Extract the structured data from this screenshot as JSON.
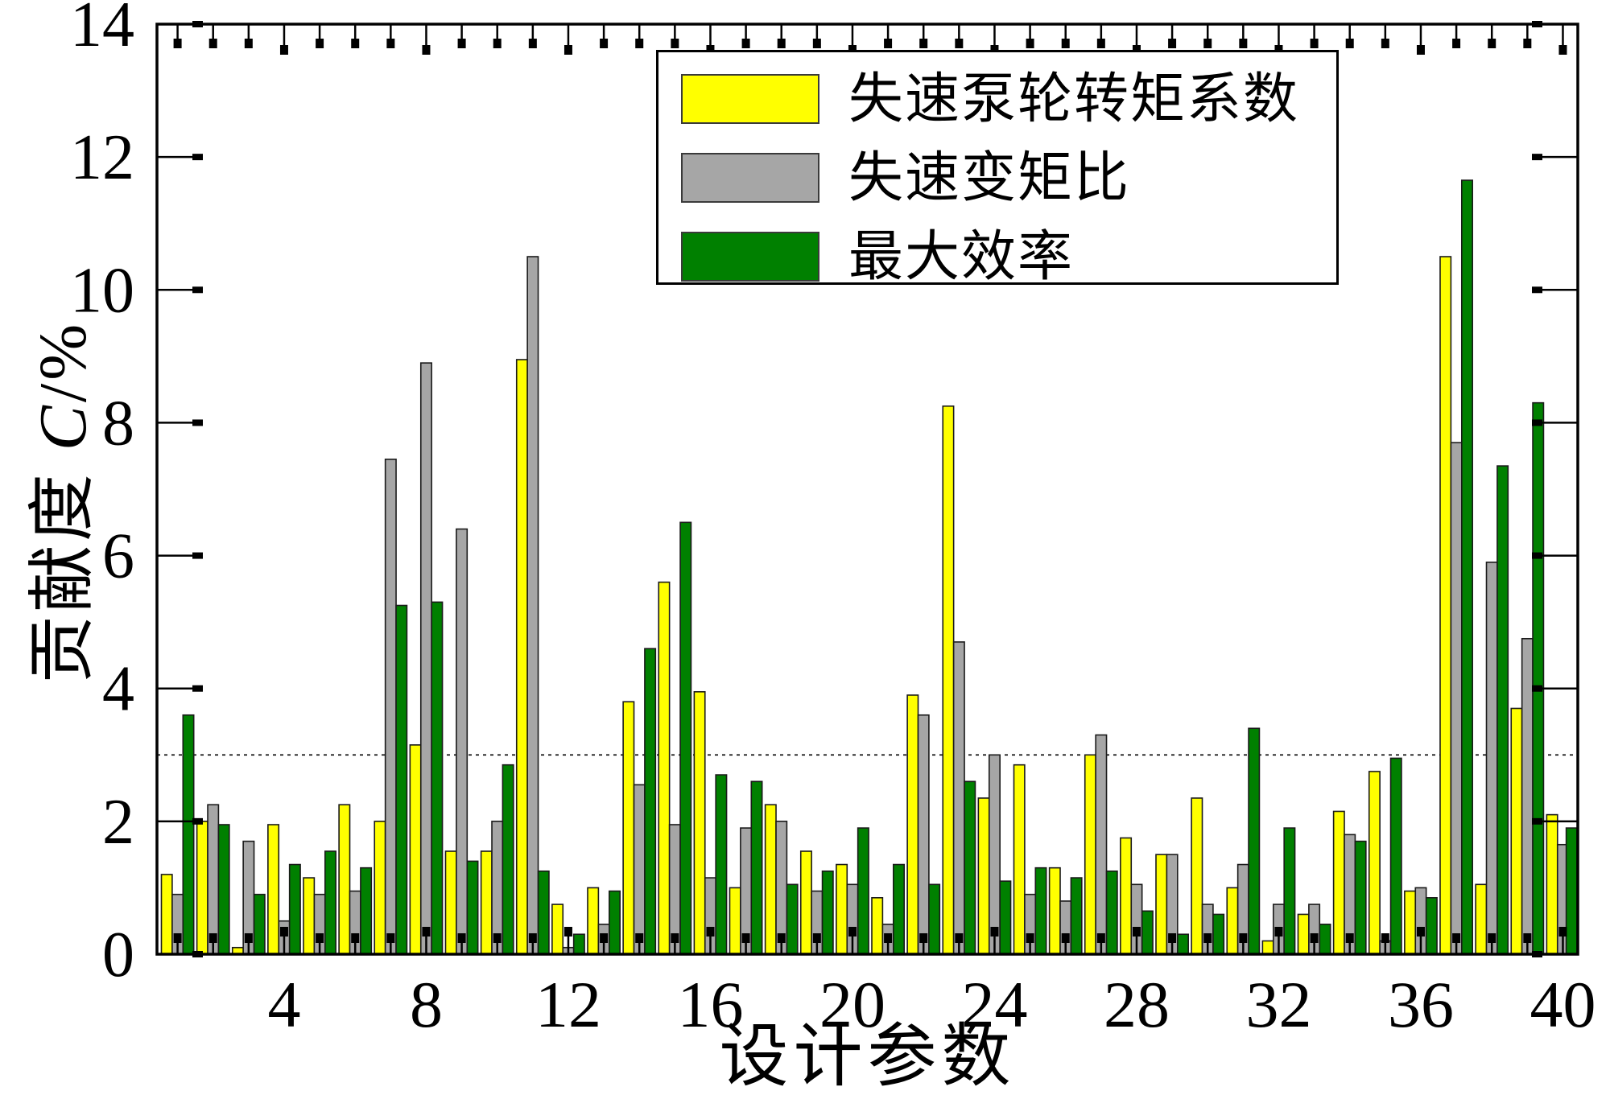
{
  "figure_title": "",
  "axes": {
    "xlabel": "设计参数",
    "ylabel": "贡献度 C/%",
    "ylabel_parts": {
      "prefix": "贡献度 ",
      "var": "C",
      "suffix": "/%"
    }
  },
  "legend": {
    "items": [
      {
        "label": "失速泵轮转矩系数",
        "color": "#ffff00"
      },
      {
        "label": "失速变矩比",
        "color": "#a6a6a6"
      },
      {
        "label": "最大效率",
        "color": "#008000"
      }
    ]
  },
  "chart_data": {
    "type": "bar",
    "title": "",
    "xlabel": "设计参数",
    "ylabel": "贡献度 C/%",
    "xlim": [
      0.42,
      40.42
    ],
    "ylim": [
      0,
      14
    ],
    "yticks": [
      0,
      2,
      4,
      6,
      8,
      10,
      12,
      14
    ],
    "xticks": [
      4,
      8,
      12,
      16,
      20,
      24,
      28,
      32,
      36,
      40
    ],
    "minor_xtick_step": 1,
    "grid": false,
    "legend_position": "upper-left-inside",
    "reference_line_y": 3.0,
    "reference_line_style": "dashed",
    "categories": [
      1,
      2,
      3,
      4,
      5,
      6,
      7,
      8,
      9,
      10,
      11,
      12,
      13,
      14,
      15,
      16,
      17,
      18,
      19,
      20,
      21,
      22,
      23,
      24,
      25,
      26,
      27,
      28,
      29,
      30,
      31,
      32,
      33,
      34,
      35,
      36,
      37,
      38,
      39,
      40
    ],
    "series": [
      {
        "name": "失速泵轮转矩系数",
        "color": "#ffff00",
        "values": [
          1.2,
          2.0,
          0.1,
          1.95,
          1.15,
          2.25,
          2.0,
          3.15,
          1.55,
          1.55,
          8.95,
          0.75,
          1.0,
          3.8,
          5.6,
          3.95,
          1.0,
          2.25,
          1.55,
          1.35,
          0.85,
          3.9,
          8.25,
          2.35,
          2.85,
          1.3,
          3.0,
          1.75,
          1.5,
          2.35,
          1.0,
          0.2,
          0.6,
          2.15,
          2.75,
          0.95,
          10.5,
          1.05,
          3.7,
          2.1
        ]
      },
      {
        "name": "失速变矩比",
        "color": "#a6a6a6",
        "values": [
          0.9,
          2.25,
          1.7,
          0.5,
          0.9,
          0.95,
          7.45,
          8.9,
          6.4,
          2.0,
          10.5,
          0.1,
          0.45,
          2.55,
          1.95,
          1.15,
          1.9,
          2.0,
          0.95,
          1.05,
          0.45,
          3.6,
          4.7,
          3.0,
          0.9,
          0.8,
          3.3,
          1.05,
          1.5,
          0.75,
          1.35,
          0.75,
          0.75,
          1.8,
          0.2,
          1.0,
          7.7,
          5.9,
          4.75,
          1.65
        ]
      },
      {
        "name": "最大效率",
        "color": "#008000",
        "values": [
          3.6,
          1.95,
          0.9,
          1.35,
          1.55,
          1.3,
          5.25,
          5.3,
          1.4,
          2.85,
          1.25,
          0.3,
          0.95,
          4.6,
          6.5,
          2.7,
          2.6,
          1.05,
          1.25,
          1.9,
          1.35,
          1.05,
          2.6,
          1.1,
          1.3,
          1.15,
          1.25,
          0.65,
          0.3,
          0.6,
          3.4,
          1.9,
          0.45,
          1.7,
          2.95,
          0.85,
          11.65,
          7.35,
          8.3,
          1.9
        ]
      }
    ]
  }
}
